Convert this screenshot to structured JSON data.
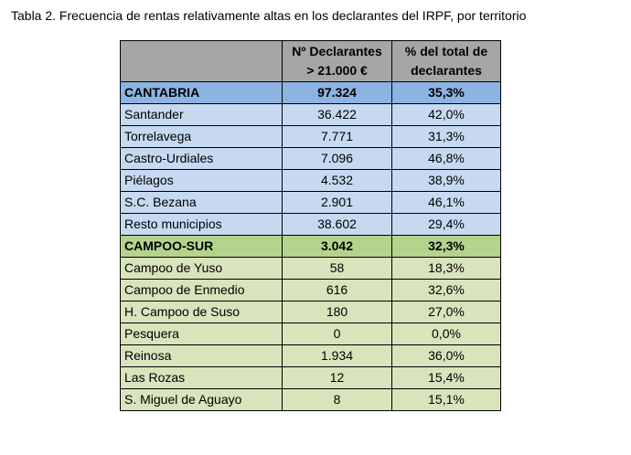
{
  "caption": "Tabla 2. Frecuencia de rentas relativamente altas en los declarantes del IRPF, por territorio",
  "table": {
    "headers": [
      "",
      "Nº Declarantes\n> 21.000 €",
      "% del total de\ndeclarantes"
    ],
    "header_lines": {
      "col2": [
        "Nº Declarantes",
        "> 21.000 €"
      ],
      "col3": [
        "% del total de",
        "declarantes"
      ]
    },
    "colors": {
      "header": "#a6a6a6",
      "cantabria_group": "#8db3e2",
      "cantabria_rows": "#c6d9f1",
      "campoo_group": "#b4d48e",
      "campoo_rows": "#d8e4bc"
    },
    "groups": [
      {
        "name": "CANTABRIA",
        "declarantes": "97.324",
        "pct": "35,3%",
        "rows": [
          {
            "name": "Santander",
            "declarantes": "36.422",
            "pct": "42,0%"
          },
          {
            "name": "Torrelavega",
            "declarantes": "7.771",
            "pct": "31,3%"
          },
          {
            "name": "Castro-Urdiales",
            "declarantes": "7.096",
            "pct": "46,8%"
          },
          {
            "name": "Piélagos",
            "declarantes": "4.532",
            "pct": "38,9%"
          },
          {
            "name": "S.C. Bezana",
            "declarantes": "2.901",
            "pct": "46,1%"
          },
          {
            "name": "Resto municipios",
            "declarantes": "38.602",
            "pct": "29,4%"
          }
        ]
      },
      {
        "name": "CAMPOO-SUR",
        "declarantes": "3.042",
        "pct": "32,3%",
        "rows": [
          {
            "name": "Campoo de Yuso",
            "declarantes": "58",
            "pct": "18,3%"
          },
          {
            "name": "Campoo de Enmedio",
            "declarantes": "616",
            "pct": "32,6%"
          },
          {
            "name": "H. Campoo de Suso",
            "declarantes": "180",
            "pct": "27,0%"
          },
          {
            "name": "Pesquera",
            "declarantes": "0",
            "pct": "0,0%"
          },
          {
            "name": "Reinosa",
            "declarantes": "1.934",
            "pct": "36,0%"
          },
          {
            "name": "Las Rozas",
            "declarantes": "12",
            "pct": "15,4%"
          },
          {
            "name": "S. Miguel de Aguayo",
            "declarantes": "8",
            "pct": "15,1%"
          }
        ]
      }
    ]
  }
}
